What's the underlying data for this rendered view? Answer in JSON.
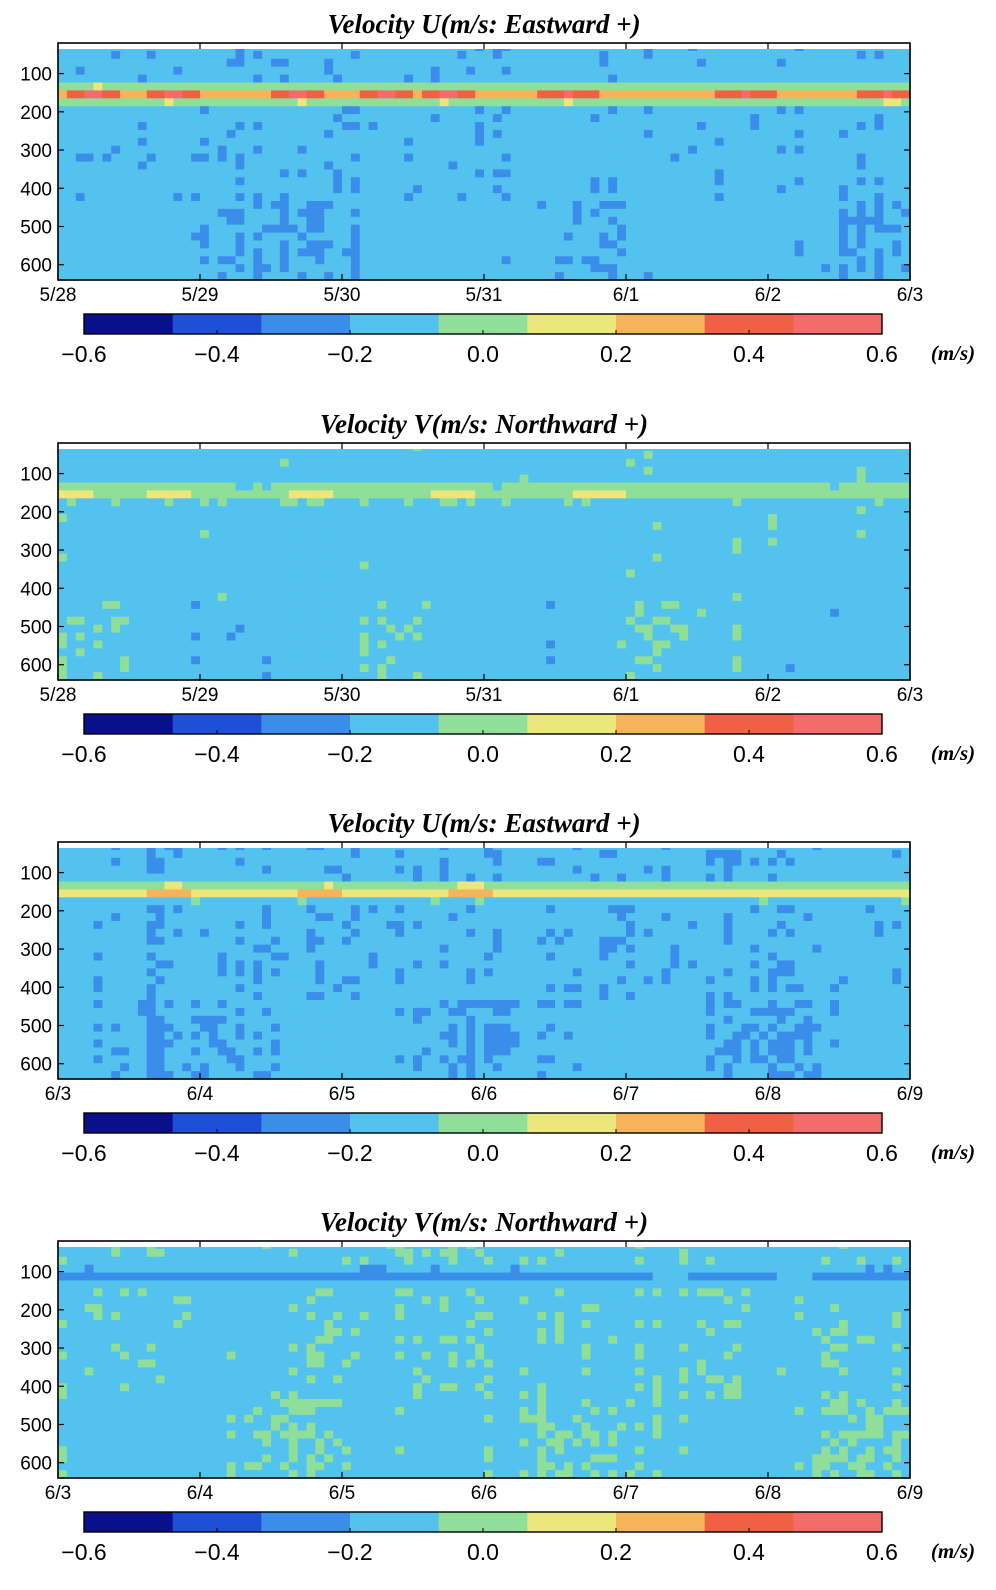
{
  "chart_data": [
    {
      "type": "heatmap",
      "title": "Velocity U(m/s: Eastward +)",
      "x_ticks": [
        "5/28",
        "5/29",
        "5/30",
        "5/31",
        "6/1",
        "6/2",
        "6/3"
      ],
      "y_ticks": [
        "100",
        "200",
        "300",
        "400",
        "500",
        "600"
      ],
      "x_range": [
        "5/28",
        "6/3"
      ],
      "y_range": [
        20,
        640
      ],
      "y_reversed": true,
      "colorbar": {
        "min": -0.6,
        "max": 0.6,
        "ticks": [
          "−0.6",
          "−0.4",
          "−0.2",
          "0.0",
          "0.2",
          "0.4",
          "0.6"
        ],
        "unit": "(m/s)",
        "levels": 9
      },
      "band": {
        "depth": 155,
        "value": 0.33,
        "hot_days": [
          0.25,
          0.8,
          1.7,
          2.3,
          2.75,
          3.6,
          4.85,
          5.85
        ]
      },
      "background_value": -0.16
    },
    {
      "type": "heatmap",
      "title": "Velocity V(m/s: Northward +)",
      "x_ticks": [
        "5/28",
        "5/29",
        "5/30",
        "5/31",
        "6/1",
        "6/2",
        "6/3"
      ],
      "y_ticks": [
        "100",
        "200",
        "300",
        "400",
        "500",
        "600"
      ],
      "x_range": [
        "5/28",
        "6/3"
      ],
      "y_range": [
        20,
        640
      ],
      "y_reversed": true,
      "colorbar": {
        "min": -0.6,
        "max": 0.6,
        "ticks": [
          "−0.6",
          "−0.4",
          "−0.2",
          "0.0",
          "0.2",
          "0.4",
          "0.6"
        ],
        "unit": "(m/s)",
        "levels": 9
      },
      "band": {
        "depth": 150,
        "value": 0.05,
        "hot_days": [
          0.1,
          0.8,
          1.8,
          2.8,
          3.8
        ]
      },
      "background_value": -0.12
    },
    {
      "type": "heatmap",
      "title": "Velocity U(m/s: Eastward +)",
      "x_ticks": [
        "6/3",
        "6/4",
        "6/5",
        "6/6",
        "6/7",
        "6/8",
        "6/9"
      ],
      "y_ticks": [
        "100",
        "200",
        "300",
        "400",
        "500",
        "600"
      ],
      "x_range": [
        "6/3",
        "6/9"
      ],
      "y_range": [
        20,
        640
      ],
      "y_reversed": true,
      "colorbar": {
        "min": -0.6,
        "max": 0.6,
        "ticks": [
          "−0.6",
          "−0.4",
          "−0.2",
          "0.0",
          "0.2",
          "0.4",
          "0.6"
        ],
        "unit": "(m/s)",
        "levels": 9
      },
      "band": {
        "depth": 150,
        "value": 0.2,
        "hot_days": [
          0.8,
          1.85,
          2.9
        ]
      },
      "background_value": -0.17
    },
    {
      "type": "heatmap",
      "title": "Velocity V(m/s: Northward +)",
      "x_ticks": [
        "6/3",
        "6/4",
        "6/5",
        "6/6",
        "6/7",
        "6/8",
        "6/9"
      ],
      "y_ticks": [
        "100",
        "200",
        "300",
        "400",
        "500",
        "600"
      ],
      "x_range": [
        "6/3",
        "6/9"
      ],
      "y_range": [
        20,
        640
      ],
      "y_reversed": true,
      "colorbar": {
        "min": -0.6,
        "max": 0.6,
        "ticks": [
          "−0.6",
          "−0.4",
          "−0.2",
          "0.0",
          "0.2",
          "0.4",
          "0.6"
        ],
        "unit": "(m/s)",
        "levels": 9
      },
      "band": {
        "depth": 110,
        "value": -0.3,
        "hot_days": [
          4.3,
          5.2
        ]
      },
      "background_value": -0.1
    }
  ],
  "colors": {
    "colormap": [
      "#0a0f8c",
      "#1f4fd6",
      "#3a8eea",
      "#53c2ee",
      "#8fdf9a",
      "#ebe77c",
      "#f5b45a",
      "#f06045",
      "#f56a6a"
    ],
    "text": "#000000",
    "frame": "#000000"
  }
}
